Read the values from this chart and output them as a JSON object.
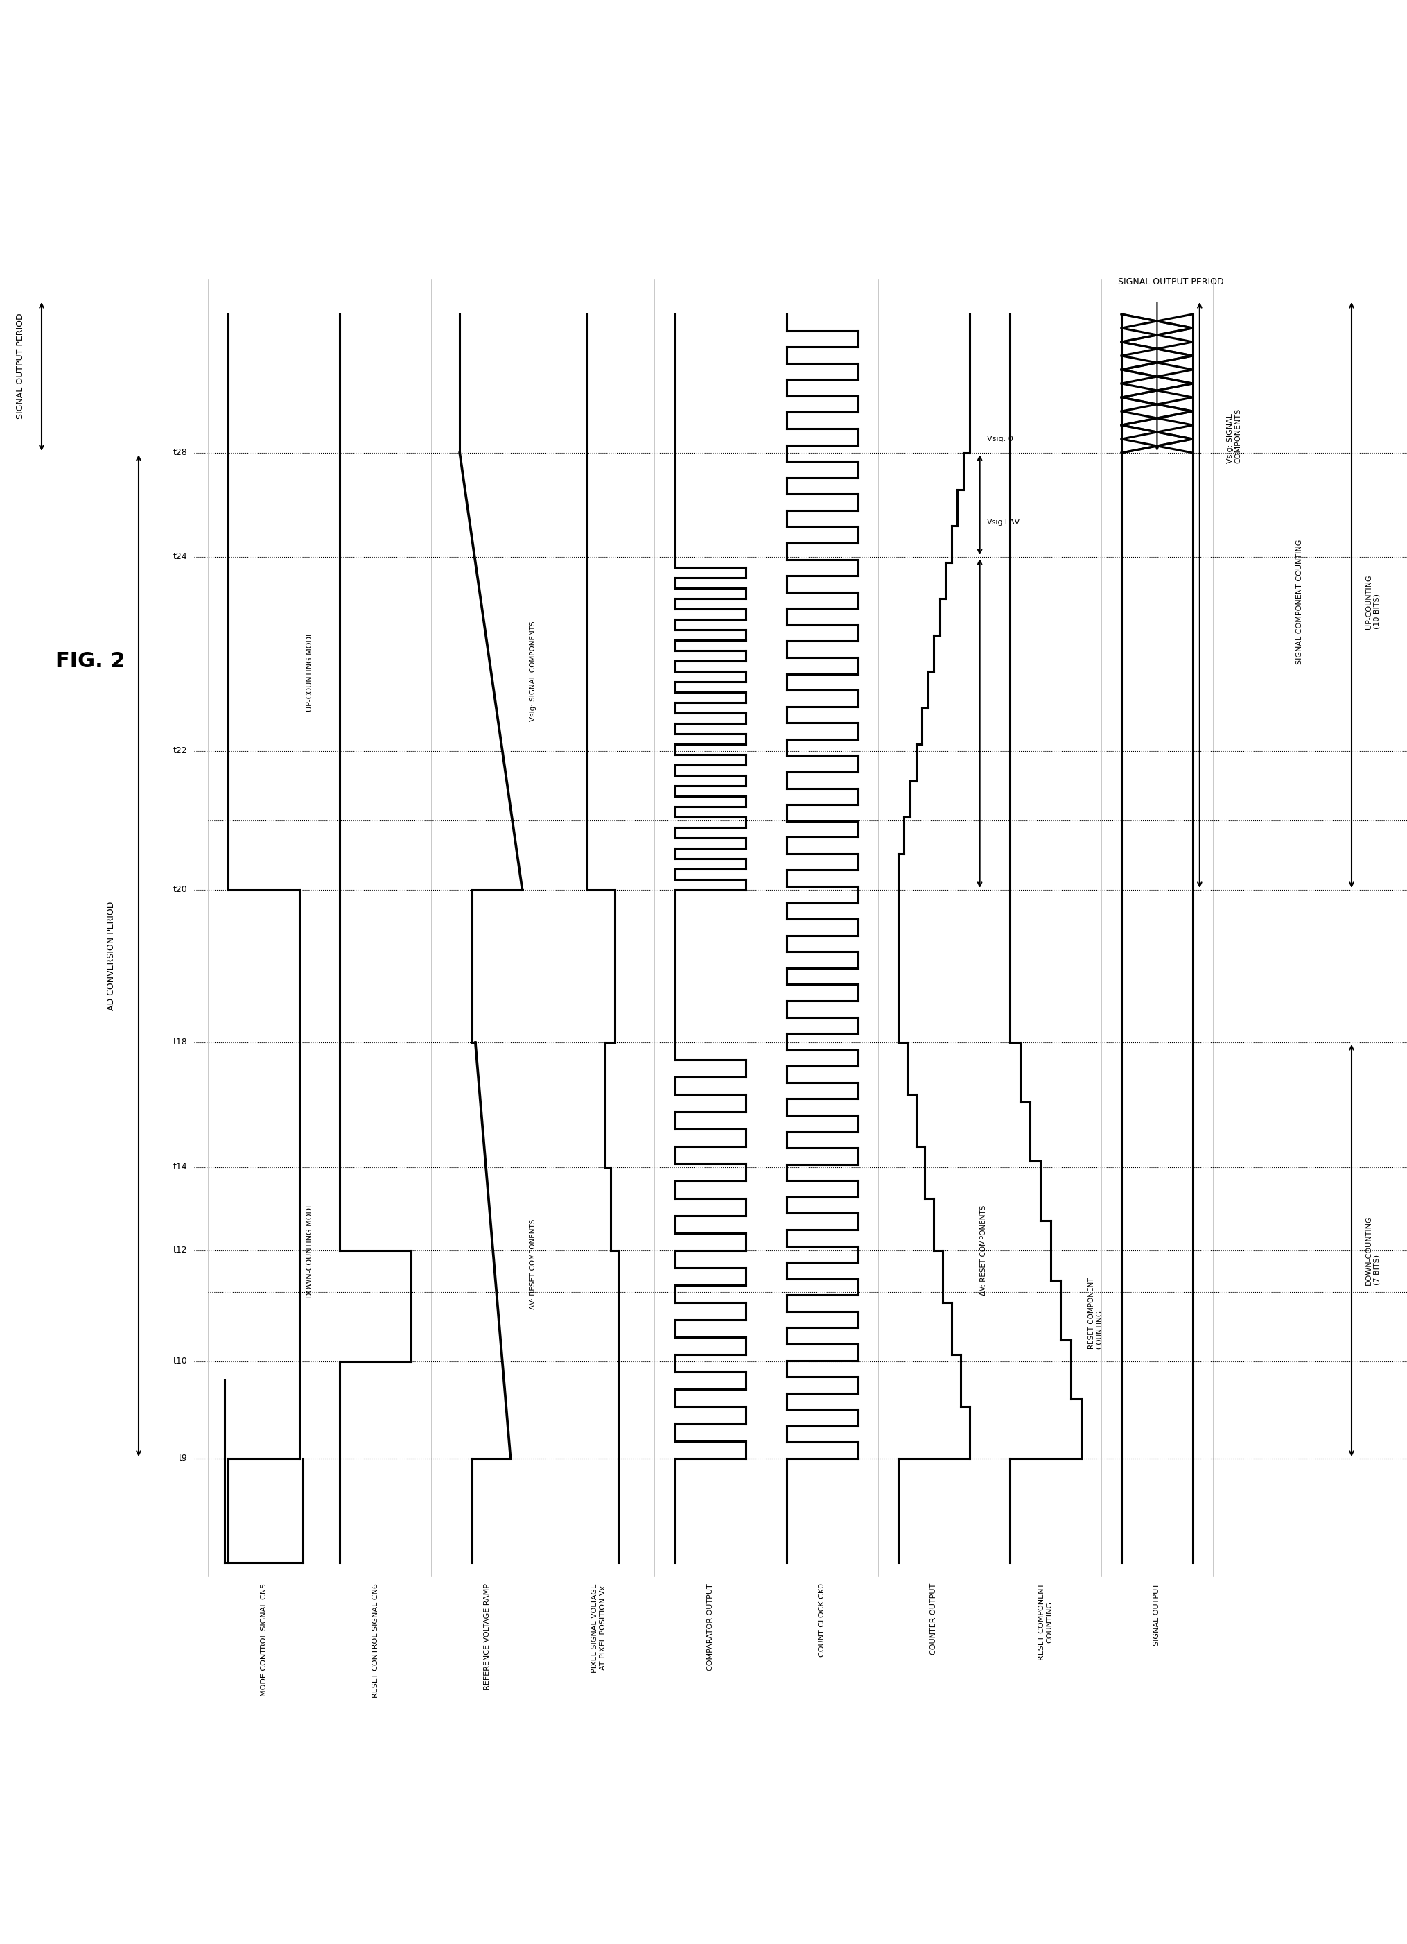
{
  "fig_width": 20.3,
  "fig_height": 28.03,
  "bg_color": "#ffffff",
  "black": "#000000",
  "title": "FIG. 2",
  "signals": [
    "MODE CONTROL SIGNAL CN5",
    "RESET CONTROL SIGNAL CN6",
    "REFERENCE VOLTAGE RAMP",
    "PIXEL SIGNAL VOLTAGE\nAT PIXEL POSITION Vx",
    "COMPARATOR OUTPUT",
    "COUNT CLOCK CK0",
    "COUNTER OUTPUT",
    "RESET COMPONENT\nCOUNTING",
    "SIGNAL OUTPUT"
  ],
  "time_labels": [
    "t9",
    "t10",
    "t12",
    "t14",
    "t18",
    "t20",
    "t22",
    "t24",
    "t28"
  ],
  "annotations": {
    "fig2": "FIG. 2",
    "ad_conversion": "AD CONVERSION PERIOD",
    "signal_output_period": "SIGNAL OUTPUT PERIOD",
    "down_counting_mode": "DOWN-COUNTING MODE",
    "up_counting_mode": "UP-COUNTING MODE",
    "delta_v_reset": "ΔV: RESET COMPONENTS",
    "vsig_signal": "Vsig: SIGNAL COMPONENTS",
    "vsig_0": "Vsig: 0",
    "vsig_delta": "Vsig+ΔV",
    "reset_comp": "ΔV: RESET COMPONENTS",
    "signal_comp_counting": "SIGNAL COMPONENT COUNTING",
    "signal_components": "Vsig: SIGNAL\nCOMPONENTS",
    "reset_comp_counting": "RESET COMPONENT\nCOUNTING",
    "down_counting_7bits": "DOWN-COUNTING\n(7 BITS)",
    "up_counting_10bits": "UP-COUNTING\n(10 BITS)"
  }
}
